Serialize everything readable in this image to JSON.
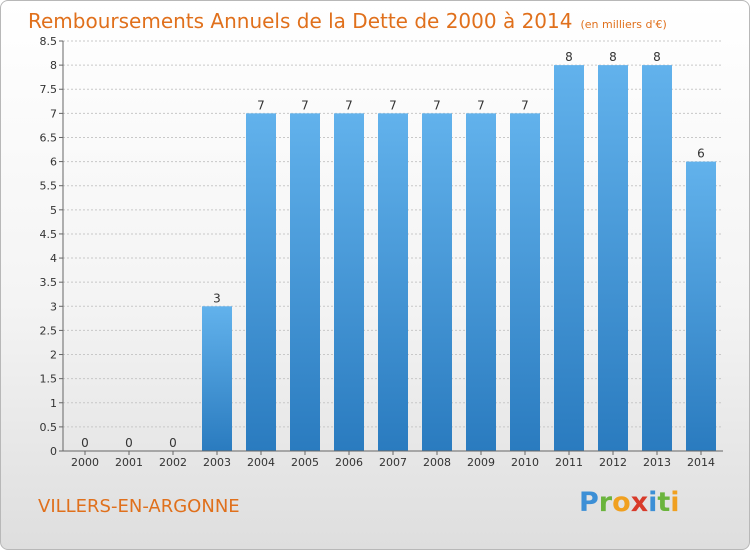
{
  "title": "Remboursements Annuels de la Dette de 2000 à 2014",
  "unit": "(en milliers d'€)",
  "commune": "VILLERS-EN-ARGONNE",
  "logo": {
    "letters": [
      {
        "ch": "P",
        "color": "#3c8fd6"
      },
      {
        "ch": "r",
        "color": "#6ab43c"
      },
      {
        "ch": "o",
        "color": "#f0a020"
      },
      {
        "ch": "x",
        "color": "#d83a2a"
      },
      {
        "ch": "i",
        "color": "#3c8fd6"
      },
      {
        "ch": "t",
        "color": "#6ab43c"
      },
      {
        "ch": "i",
        "color": "#f0a020"
      }
    ]
  },
  "colors": {
    "title": "#e0701c",
    "bar_top": "#62b2ec",
    "bar_bottom": "#2a7bbf",
    "grid": "#c8c8c8"
  },
  "chart_data": {
    "type": "bar",
    "categories": [
      "2000",
      "2001",
      "2002",
      "2003",
      "2004",
      "2005",
      "2006",
      "2007",
      "2008",
      "2009",
      "2010",
      "2011",
      "2012",
      "2013",
      "2014"
    ],
    "values": [
      0,
      0,
      0,
      3,
      7,
      7,
      7,
      7,
      7,
      7,
      7,
      8,
      8,
      8,
      6
    ],
    "value_labels": [
      "0",
      "0",
      "0",
      "3",
      "7",
      "7",
      "7",
      "7",
      "7",
      "7",
      "7",
      "8",
      "8",
      "8",
      "6"
    ],
    "y_ticks": [
      "0",
      "0.5",
      "1",
      "1.5",
      "2",
      "2.5",
      "3",
      "3.5",
      "4",
      "4.5",
      "5",
      "5.5",
      "6",
      "6.5",
      "7",
      "7.5",
      "8",
      "8.5"
    ],
    "ylim": [
      0,
      8.5
    ],
    "grid": true,
    "xlabel": "",
    "ylabel": ""
  }
}
